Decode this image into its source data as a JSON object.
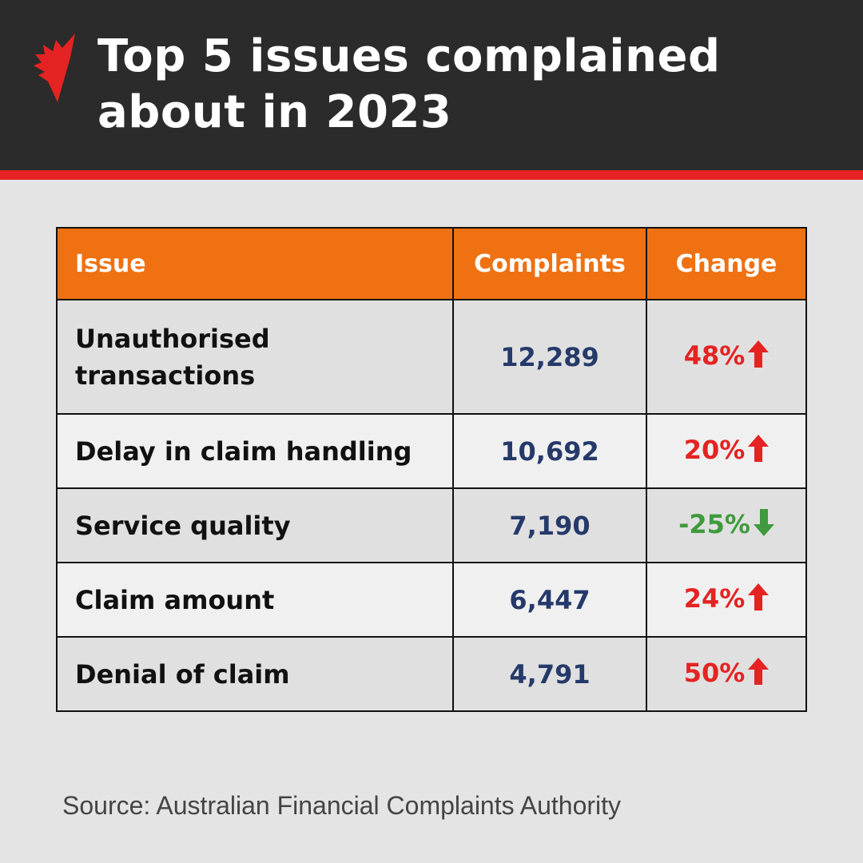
{
  "header": {
    "title_line1": "Top 5 issues complained",
    "title_line2": "about in 2023",
    "logo": "sbs-logo"
  },
  "colors": {
    "header_bg": "#2b2b2b",
    "accent_red": "#e42322",
    "table_header": "#ef7112",
    "number": "#253a6a",
    "increase": "#e42322",
    "decrease": "#3e9a3c"
  },
  "chart_data": {
    "type": "table",
    "title": "Top 5 issues complained about in 2023",
    "columns": [
      "Issue",
      "Complaints",
      "Change"
    ],
    "rows": [
      {
        "issue": "Unauthorised transactions",
        "complaints": "12,289",
        "change": "48%",
        "direction": "up"
      },
      {
        "issue": "Delay in claim handling",
        "complaints": "10,692",
        "change": "20%",
        "direction": "up"
      },
      {
        "issue": "Service quality",
        "complaints": "7,190",
        "change": "-25%",
        "direction": "down"
      },
      {
        "issue": "Claim amount",
        "complaints": "6,447",
        "change": "24%",
        "direction": "up"
      },
      {
        "issue": "Denial of claim",
        "complaints": "4,791",
        "change": "50%",
        "direction": "up"
      }
    ]
  },
  "source": "Source: Australian Financial Complaints Authority"
}
